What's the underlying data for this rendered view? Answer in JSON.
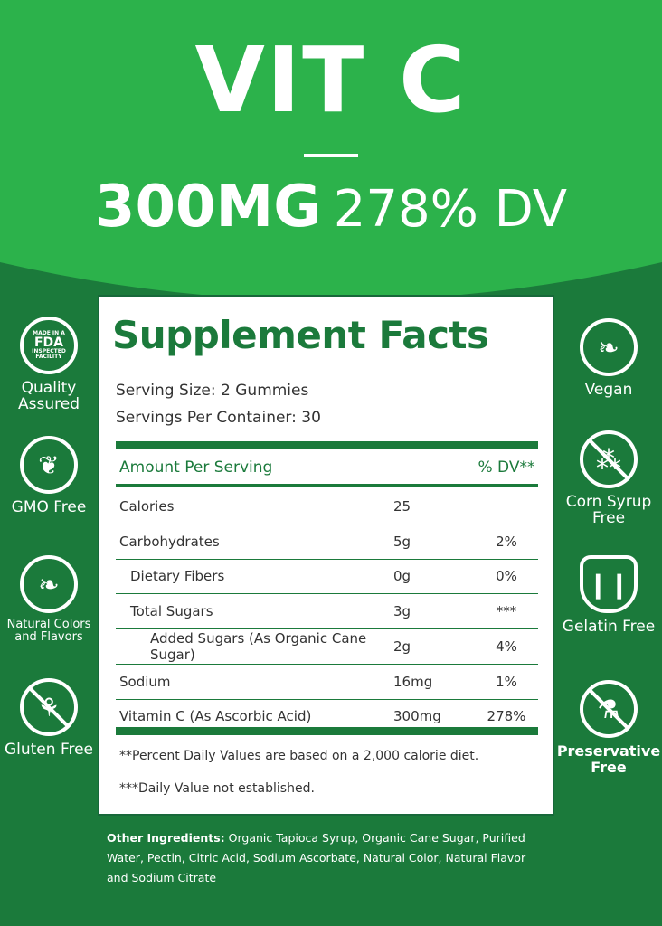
{
  "header": {
    "product": "VIT C",
    "dose": "300MG",
    "dv": "278% DV"
  },
  "colors": {
    "bright_green": "#2cb24b",
    "dark_green": "#1b7a3b",
    "white": "#ffffff"
  },
  "facts": {
    "title": "Supplement Facts",
    "serving_size": "Serving Size: 2 Gummies",
    "servings": "Servings Per Container: 30",
    "col_amount": "Amount Per Serving",
    "col_dv": "% DV**",
    "rows": [
      {
        "name": "Calories",
        "amount": "25",
        "dv": ""
      },
      {
        "name": "Carbohydrates",
        "amount": "5g",
        "dv": "2%"
      },
      {
        "name": "Dietary Fibers",
        "amount": "0g",
        "dv": "0%"
      },
      {
        "name": "Total Sugars",
        "amount": "3g",
        "dv": "***"
      },
      {
        "name": "Added Sugars (As Organic Cane Sugar)",
        "amount": "2g",
        "dv": "4%"
      },
      {
        "name": "Sodium",
        "amount": "16mg",
        "dv": "1%"
      },
      {
        "name": "Vitamin C (As Ascorbic Acid)",
        "amount": "300mg",
        "dv": "278%"
      }
    ],
    "foot1": "**Percent Daily Values are based on a 2,000 calorie diet.",
    "foot2": "***Daily Value not established."
  },
  "left_badges": [
    {
      "icon": "fda-badge-icon",
      "logo_text": "MADE IN A FDA INSPECTED FACILITY",
      "label": "Quality Assured"
    },
    {
      "icon": "sprout-icon",
      "label": "GMO Free"
    },
    {
      "icon": "leaf-icon",
      "label": "Natural Colors and Flavors"
    },
    {
      "icon": "no-wheat-icon",
      "label": "Gluten Free"
    }
  ],
  "right_badges": [
    {
      "icon": "leaves-icon",
      "label": "Vegan"
    },
    {
      "icon": "no-corn-icon",
      "label": "Corn Syrup Free"
    },
    {
      "icon": "jelly-icon",
      "label": "Gelatin Free"
    },
    {
      "icon": "no-flask-icon",
      "label": "Preservative Free"
    }
  ],
  "ingredients": {
    "label": "Other Ingredients:",
    "text": " Organic Tapioca Syrup, Organic Cane Sugar, Purified Water, Pectin, Citric Acid, Sodium Ascorbate, Natural Color, Natural Flavor and Sodium Citrate"
  }
}
